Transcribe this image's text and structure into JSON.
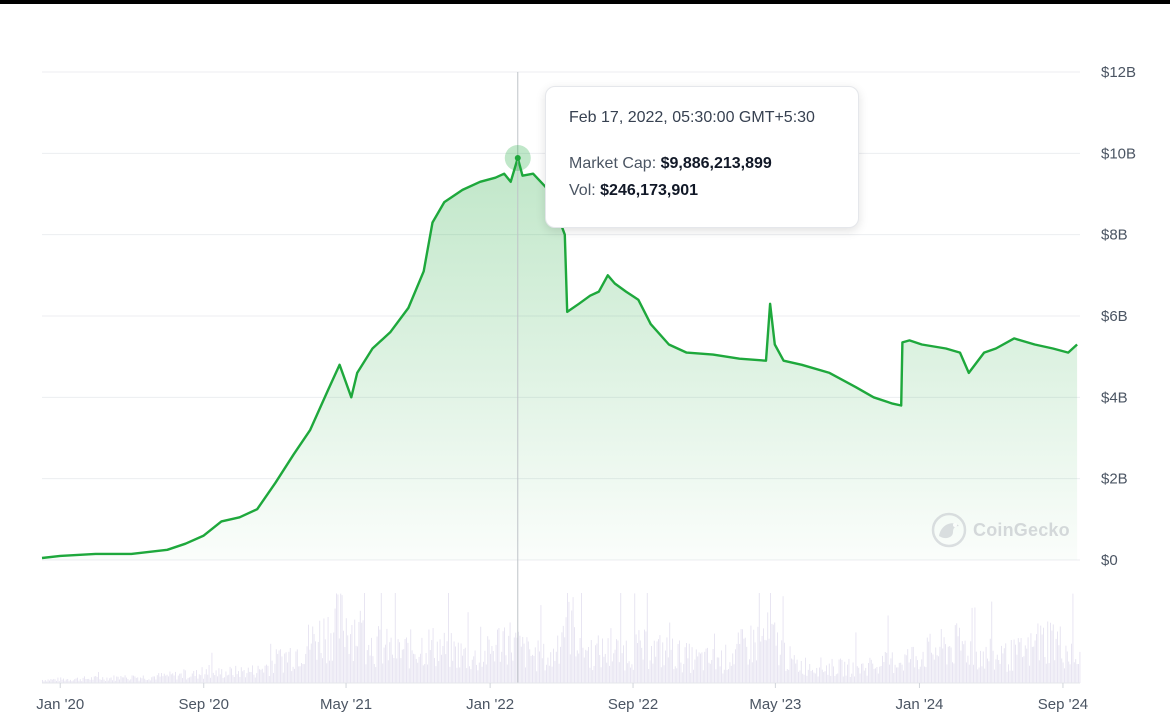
{
  "chart_data": {
    "type": "area",
    "y_unit": "USD",
    "y_ticks": [
      0,
      2,
      4,
      6,
      8,
      10,
      12
    ],
    "y_tick_labels": [
      "$0",
      "$2B",
      "$4B",
      "$6B",
      "$8B",
      "$10B",
      "$12B"
    ],
    "x_tick_labels": [
      "Jan '20",
      "Sep '20",
      "May '21",
      "Jan '22",
      "Sep '22",
      "May '23",
      "Jan '24",
      "Sep '24"
    ],
    "x_tick_dates": [
      "2020-01-01",
      "2020-09-01",
      "2021-05-01",
      "2022-01-01",
      "2022-09-01",
      "2023-05-01",
      "2024-01-01",
      "2024-09-01"
    ],
    "x_range": [
      "2019-12-01",
      "2024-09-30"
    ],
    "ylim": [
      0,
      12
    ],
    "grid": true,
    "series": [
      {
        "color": "#1ea83c",
        "x": [
          "2019-12-01",
          "2020-01-01",
          "2020-03-01",
          "2020-05-01",
          "2020-07-01",
          "2020-08-01",
          "2020-09-01",
          "2020-10-01",
          "2020-11-01",
          "2020-12-01",
          "2021-01-01",
          "2021-02-01",
          "2021-03-01",
          "2021-04-01",
          "2021-04-20",
          "2021-05-10",
          "2021-05-20",
          "2021-06-15",
          "2021-07-15",
          "2021-08-15",
          "2021-09-10",
          "2021-09-25",
          "2021-10-15",
          "2021-11-15",
          "2021-12-15",
          "2022-01-10",
          "2022-01-25",
          "2022-02-05",
          "2022-02-17",
          "2022-02-25",
          "2022-03-15",
          "2022-04-10",
          "2022-05-08",
          "2022-05-12",
          "2022-06-01",
          "2022-06-20",
          "2022-07-05",
          "2022-07-20",
          "2022-08-01",
          "2022-08-20",
          "2022-09-10",
          "2022-10-01",
          "2022-11-01",
          "2022-12-01",
          "2023-01-15",
          "2023-03-01",
          "2023-04-15",
          "2023-04-22",
          "2023-04-30",
          "2023-05-15",
          "2023-06-15",
          "2023-08-01",
          "2023-09-15",
          "2023-10-15",
          "2023-11-15",
          "2023-12-01",
          "2023-12-03",
          "2023-12-15",
          "2024-01-05",
          "2024-02-15",
          "2024-03-10",
          "2024-03-25",
          "2024-04-20",
          "2024-05-10",
          "2024-06-10",
          "2024-07-15",
          "2024-08-15",
          "2024-09-10",
          "2024-09-25"
        ],
        "values": [
          0.05,
          0.1,
          0.15,
          0.15,
          0.25,
          0.4,
          0.6,
          0.95,
          1.05,
          1.25,
          1.9,
          2.6,
          3.2,
          4.2,
          4.8,
          4.0,
          4.6,
          5.2,
          5.6,
          6.2,
          7.1,
          8.3,
          8.8,
          9.1,
          9.3,
          9.4,
          9.5,
          9.3,
          9.886,
          9.45,
          9.5,
          9.1,
          8.0,
          6.1,
          6.3,
          6.5,
          6.6,
          7.0,
          6.8,
          6.6,
          6.4,
          5.8,
          5.3,
          5.1,
          5.05,
          4.95,
          4.9,
          6.3,
          5.3,
          4.9,
          4.8,
          4.6,
          4.25,
          4.0,
          3.85,
          3.8,
          5.35,
          5.4,
          5.3,
          5.2,
          5.1,
          4.6,
          5.1,
          5.2,
          5.45,
          5.3,
          5.2,
          5.1,
          5.3
        ]
      },
      {
        "name": "Vol",
        "color": "#e8e5f2",
        "x": [
          "2019-12-01",
          "2020-03-01",
          "2020-06-01",
          "2020-09-01",
          "2020-12-01",
          "2021-02-01",
          "2021-03-15",
          "2021-04-25",
          "2021-05-20",
          "2021-06-15",
          "2021-08-01",
          "2021-09-15",
          "2021-11-01",
          "2021-12-15",
          "2022-01-25",
          "2022-03-01",
          "2022-04-15",
          "2022-05-10",
          "2022-06-15",
          "2022-08-01",
          "2022-09-15",
          "2022-11-01",
          "2022-12-15",
          "2023-02-01",
          "2023-03-15",
          "2023-04-22",
          "2023-06-01",
          "2023-08-01",
          "2023-10-01",
          "2023-12-01",
          "2024-01-15",
          "2024-03-10",
          "2024-05-01",
          "2024-07-01",
          "2024-08-10",
          "2024-09-25"
        ],
        "values": [
          0.02,
          0.03,
          0.04,
          0.06,
          0.08,
          0.2,
          0.3,
          0.4,
          0.35,
          0.25,
          0.2,
          0.25,
          0.2,
          0.15,
          0.3,
          0.2,
          0.15,
          0.45,
          0.2,
          0.2,
          0.22,
          0.2,
          0.15,
          0.15,
          0.25,
          0.3,
          0.12,
          0.1,
          0.1,
          0.15,
          0.2,
          0.25,
          0.15,
          0.2,
          0.3,
          0.15
        ]
      }
    ],
    "hover": {
      "date": "2022-02-17",
      "value": 9.886
    }
  },
  "tooltip": {
    "date": "Feb 17, 2022, 05:30:00 GMT+5:30",
    "market_cap_label": "Market Cap:",
    "market_cap_value": "$9,886,213,899",
    "vol_label": "Vol:",
    "vol_value": "$246,173,901"
  },
  "watermark": {
    "text": "CoinGecko",
    "icon": "gecko-logo-icon"
  }
}
